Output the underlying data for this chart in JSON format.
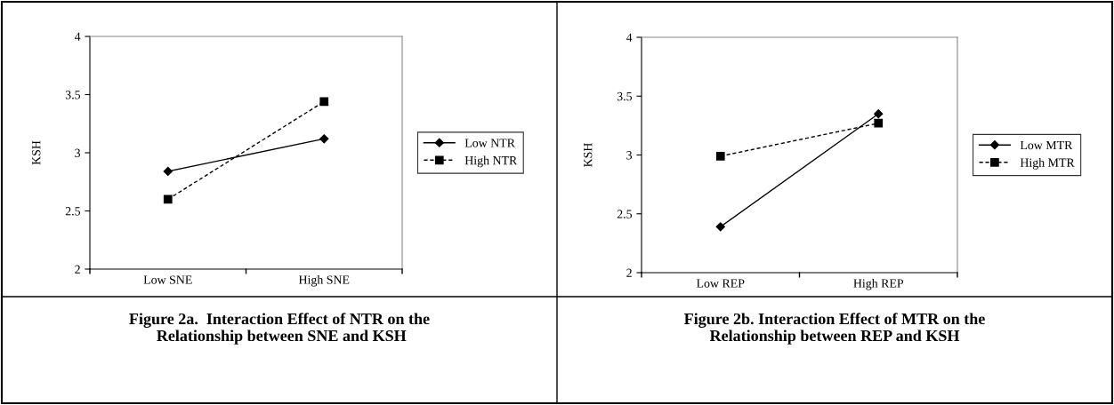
{
  "chart_data": [
    {
      "type": "line",
      "title": "Figure 2a.  Interaction Effect of NTR on the\n Relationship between SNE and KSH",
      "ylabel": "KSH",
      "categories": [
        "Low SNE",
        "High SNE"
      ],
      "ylim": [
        2,
        4
      ],
      "yticks": [
        2,
        2.5,
        3,
        3.5,
        4
      ],
      "grid": false,
      "legend": "right",
      "series": [
        {
          "name": "Low NTR",
          "color": "#000000",
          "values": [
            2.84,
            3.12
          ],
          "marker": "diamond",
          "line_style": "solid"
        },
        {
          "name": "High NTR",
          "color": "#000000",
          "values": [
            2.6,
            3.44
          ],
          "marker": "square",
          "line_style": "dashed"
        }
      ]
    },
    {
      "type": "line",
      "title": "Figure 2b. Interaction Effect of MTR on the\nRelationship between REP and KSH",
      "ylabel": "KSH",
      "categories": [
        "Low REP",
        "High REP"
      ],
      "ylim": [
        2,
        4
      ],
      "yticks": [
        2,
        2.5,
        3,
        3.5,
        4
      ],
      "grid": false,
      "legend": "right",
      "series": [
        {
          "name": "Low MTR",
          "color": "#000000",
          "values": [
            2.39,
            3.35
          ],
          "marker": "diamond",
          "line_style": "solid"
        },
        {
          "name": "High MTR",
          "color": "#000000",
          "values": [
            2.99,
            3.27
          ],
          "marker": "square",
          "line_style": "dashed"
        }
      ]
    }
  ]
}
